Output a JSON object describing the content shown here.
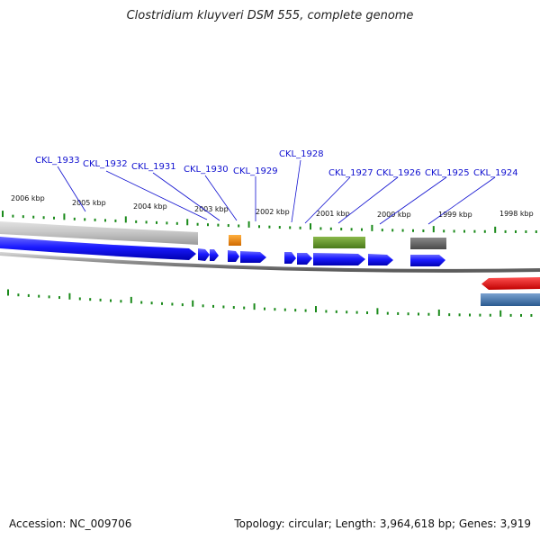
{
  "title": "Clostridium kluyveri DSM 555, complete genome",
  "accession": "Accession: NC_009706",
  "topology": "Topology: circular; Length: 3,964,618 bp; Genes: 3,919",
  "kbp_labels": [
    "2006 kbp",
    "2005 kbp",
    "2004 kbp",
    "2003 kbp",
    "2002 kbp",
    "2001 kbp",
    "2000 kbp",
    "1999 kbp",
    "1998 kbp"
  ],
  "gene_labels": [
    "CKL_1933",
    "CKL_1932",
    "CKL_1931",
    "CKL_1930",
    "CKL_1929",
    "CKL_1928",
    "CKL_1927",
    "CKL_1926",
    "CKL_1925",
    "CKL_1924"
  ],
  "colors": {
    "gene": "#1a1aff",
    "label": "#1010d0",
    "tick": "#1a8a1a",
    "orange_feature": "#f08a10",
    "green_feature": "#6a9a2a",
    "gray_feature": "#666666",
    "red_feature": "#ee1111",
    "steel_feature": "#4a7ab0"
  }
}
